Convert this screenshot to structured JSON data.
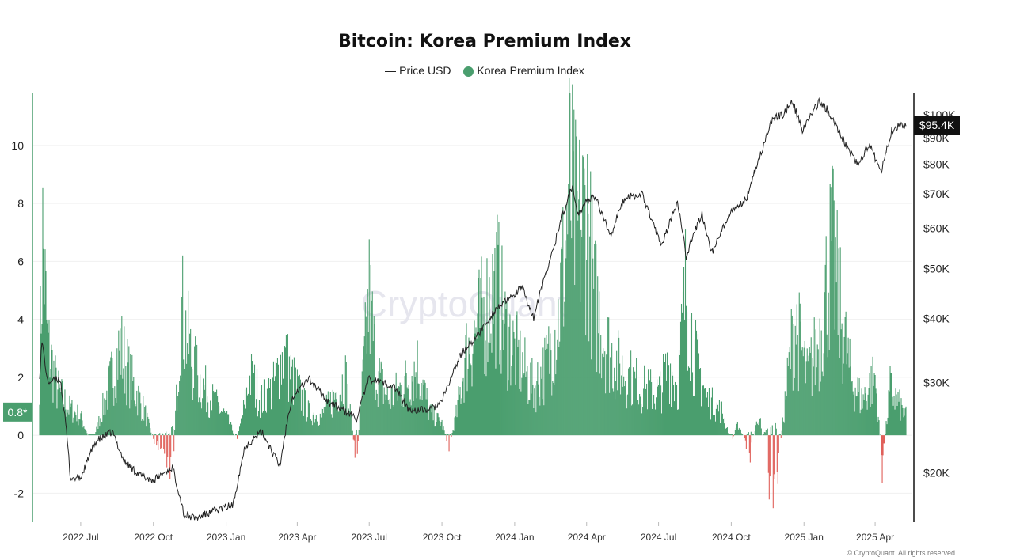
{
  "chart_data": {
    "type": "bar",
    "title": "Bitcoin: Korea Premium Index",
    "watermark": "CryptoQuant",
    "copyright": "© CryptoQuant. All rights reserved",
    "legend": [
      {
        "name": "Price USD",
        "style": "line",
        "color": "#222222"
      },
      {
        "name": "Korea Premium Index",
        "style": "dot",
        "color": "#4a9e6e"
      }
    ],
    "legend_position": "top-center",
    "colors": {
      "positive": "#4a9e6e",
      "negative": "#e0605a",
      "price": "#222222",
      "left_axis": "#4a9e6e"
    },
    "x_axis": {
      "range": [
        "2022-05-10",
        "2025-05-10"
      ],
      "tick_labels": [
        {
          "label": "2022 Jul",
          "date": "2022-07-01"
        },
        {
          "label": "2022 Oct",
          "date": "2022-10-01"
        },
        {
          "label": "2023 Jan",
          "date": "2023-01-01"
        },
        {
          "label": "2023 Apr",
          "date": "2023-04-01"
        },
        {
          "label": "2023 Jul",
          "date": "2023-07-01"
        },
        {
          "label": "2023 Oct",
          "date": "2023-10-01"
        },
        {
          "label": "2024 Jan",
          "date": "2024-01-01"
        },
        {
          "label": "2024 Apr",
          "date": "2024-04-01"
        },
        {
          "label": "2024 Jul",
          "date": "2024-07-01"
        },
        {
          "label": "2024 Oct",
          "date": "2024-10-01"
        },
        {
          "label": "2025 Jan",
          "date": "2025-01-01"
        },
        {
          "label": "2025 Apr",
          "date": "2025-04-01"
        }
      ]
    },
    "y_left": {
      "range": [
        -3,
        11.8
      ],
      "ticks": [
        "-2",
        "0",
        "2",
        "4",
        "6",
        "8",
        "10"
      ],
      "current_value_label": "0.8*",
      "current_value": 0.8
    },
    "y_right": {
      "scale": "log",
      "range": [
        16000,
        110000
      ],
      "ticks": [
        {
          "label": "$20K",
          "value": 20000
        },
        {
          "label": "$30K",
          "value": 30000
        },
        {
          "label": "$40K",
          "value": 40000
        },
        {
          "label": "$50K",
          "value": 50000
        },
        {
          "label": "$60K",
          "value": 60000
        },
        {
          "label": "$70K",
          "value": 70000
        },
        {
          "label": "$80K",
          "value": 80000
        },
        {
          "label": "$90K",
          "value": 90000
        },
        {
          "label": "$100K",
          "value": 100000
        }
      ],
      "current_value_label": "$95.4K",
      "current_value": 95400
    },
    "grid": "horizontal",
    "premium_anchors": [
      [
        "2022-05-10",
        3.0
      ],
      [
        "2022-05-14",
        8.5
      ],
      [
        "2022-05-20",
        4.0
      ],
      [
        "2022-06-01",
        2.0
      ],
      [
        "2022-06-15",
        1.2
      ],
      [
        "2022-07-01",
        0.8
      ],
      [
        "2022-07-15",
        -0.4
      ],
      [
        "2022-08-01",
        1.5
      ],
      [
        "2022-08-20",
        3.8
      ],
      [
        "2022-09-01",
        2.5
      ],
      [
        "2022-09-20",
        1.0
      ],
      [
        "2022-10-01",
        -0.2
      ],
      [
        "2022-10-15",
        -0.6
      ],
      [
        "2022-10-25",
        -1.8
      ],
      [
        "2022-11-05",
        5.5
      ],
      [
        "2022-11-20",
        3.0
      ],
      [
        "2022-12-01",
        2.2
      ],
      [
        "2022-12-15",
        1.5
      ],
      [
        "2023-01-01",
        0.8
      ],
      [
        "2023-01-15",
        -0.2
      ],
      [
        "2023-02-01",
        2.5
      ],
      [
        "2023-02-15",
        1.5
      ],
      [
        "2023-03-01",
        2.0
      ],
      [
        "2023-03-15",
        3.5
      ],
      [
        "2023-03-25",
        2.5
      ],
      [
        "2023-04-15",
        1.0
      ],
      [
        "2023-05-01",
        0.8
      ],
      [
        "2023-05-15",
        1.5
      ],
      [
        "2023-06-01",
        2.5
      ],
      [
        "2023-06-15",
        -1.2
      ],
      [
        "2023-07-01",
        6.0
      ],
      [
        "2023-07-10",
        2.8
      ],
      [
        "2023-07-25",
        1.5
      ],
      [
        "2023-08-10",
        2.0
      ],
      [
        "2023-09-01",
        3.0
      ],
      [
        "2023-09-15",
        1.0
      ],
      [
        "2023-10-01",
        0.5
      ],
      [
        "2023-10-10",
        -0.5
      ],
      [
        "2023-10-20",
        1.0
      ],
      [
        "2023-11-01",
        3.5
      ],
      [
        "2023-11-20",
        5.0
      ],
      [
        "2023-12-10",
        6.5
      ],
      [
        "2023-12-20",
        4.5
      ],
      [
        "2024-01-10",
        3.0
      ],
      [
        "2024-01-25",
        2.0
      ],
      [
        "2024-02-10",
        3.0
      ],
      [
        "2024-02-25",
        5.0
      ],
      [
        "2024-03-05",
        8.0
      ],
      [
        "2024-03-10",
        10.8
      ],
      [
        "2024-03-20",
        8.5
      ],
      [
        "2024-04-01",
        9.8
      ],
      [
        "2024-04-10",
        6.0
      ],
      [
        "2024-04-25",
        4.0
      ],
      [
        "2024-05-10",
        3.0
      ],
      [
        "2024-05-25",
        2.5
      ],
      [
        "2024-06-10",
        2.0
      ],
      [
        "2024-07-01",
        1.8
      ],
      [
        "2024-07-15",
        3.0
      ],
      [
        "2024-07-25",
        2.0
      ],
      [
        "2024-08-05",
        6.5
      ],
      [
        "2024-08-15",
        3.5
      ],
      [
        "2024-09-01",
        1.5
      ],
      [
        "2024-09-20",
        1.0
      ],
      [
        "2024-10-01",
        -0.3
      ],
      [
        "2024-10-10",
        0.5
      ],
      [
        "2024-10-25",
        -0.8
      ],
      [
        "2024-11-05",
        1.0
      ],
      [
        "2024-11-15",
        -1.5
      ],
      [
        "2024-11-25",
        -2.4
      ],
      [
        "2024-12-05",
        0.5
      ],
      [
        "2024-12-20",
        5.0
      ],
      [
        "2025-01-05",
        2.5
      ],
      [
        "2025-01-20",
        4.0
      ],
      [
        "2025-02-05",
        8.0
      ],
      [
        "2025-02-15",
        5.5
      ],
      [
        "2025-03-01",
        2.5
      ],
      [
        "2025-03-15",
        1.5
      ],
      [
        "2025-04-01",
        2.5
      ],
      [
        "2025-04-10",
        -1.2
      ],
      [
        "2025-04-20",
        2.0
      ],
      [
        "2025-05-10",
        0.8
      ]
    ],
    "price_anchors": [
      [
        "2022-05-10",
        31000
      ],
      [
        "2022-05-13",
        36000
      ],
      [
        "2022-05-20",
        30000
      ],
      [
        "2022-06-05",
        30500
      ],
      [
        "2022-06-13",
        24000
      ],
      [
        "2022-06-18",
        19500
      ],
      [
        "2022-07-01",
        19500
      ],
      [
        "2022-07-20",
        23000
      ],
      [
        "2022-08-10",
        24000
      ],
      [
        "2022-08-25",
        21000
      ],
      [
        "2022-09-15",
        19700
      ],
      [
        "2022-10-01",
        19300
      ],
      [
        "2022-10-25",
        20500
      ],
      [
        "2022-11-09",
        16500
      ],
      [
        "2022-11-25",
        16300
      ],
      [
        "2022-12-15",
        16800
      ],
      [
        "2023-01-10",
        17300
      ],
      [
        "2023-01-25",
        22500
      ],
      [
        "2023-02-15",
        24000
      ],
      [
        "2023-03-10",
        20500
      ],
      [
        "2023-03-25",
        28000
      ],
      [
        "2023-04-15",
        30500
      ],
      [
        "2023-05-10",
        27500
      ],
      [
        "2023-06-15",
        25500
      ],
      [
        "2023-07-01",
        30500
      ],
      [
        "2023-08-01",
        29500
      ],
      [
        "2023-08-20",
        26500
      ],
      [
        "2023-09-15",
        26500
      ],
      [
        "2023-10-01",
        27500
      ],
      [
        "2023-10-25",
        34000
      ],
      [
        "2023-11-15",
        37000
      ],
      [
        "2023-12-10",
        42000
      ],
      [
        "2023-12-25",
        43500
      ],
      [
        "2024-01-10",
        46000
      ],
      [
        "2024-01-25",
        40000
      ],
      [
        "2024-02-15",
        52000
      ],
      [
        "2024-03-05",
        66000
      ],
      [
        "2024-03-14",
        72500
      ],
      [
        "2024-03-20",
        64000
      ],
      [
        "2024-04-10",
        70000
      ],
      [
        "2024-05-01",
        58000
      ],
      [
        "2024-05-20",
        69000
      ],
      [
        "2024-06-10",
        70000
      ],
      [
        "2024-07-05",
        55000
      ],
      [
        "2024-07-25",
        68000
      ],
      [
        "2024-08-05",
        53000
      ],
      [
        "2024-08-25",
        64000
      ],
      [
        "2024-09-06",
        53500
      ],
      [
        "2024-09-30",
        64000
      ],
      [
        "2024-10-20",
        68500
      ],
      [
        "2024-11-12",
        88000
      ],
      [
        "2024-11-22",
        98000
      ],
      [
        "2024-12-05",
        100000
      ],
      [
        "2024-12-17",
        106000
      ],
      [
        "2024-12-30",
        93000
      ],
      [
        "2025-01-20",
        106000
      ],
      [
        "2025-01-31",
        102000
      ],
      [
        "2025-02-25",
        86000
      ],
      [
        "2025-03-10",
        80000
      ],
      [
        "2025-03-25",
        87500
      ],
      [
        "2025-04-08",
        77000
      ],
      [
        "2025-04-22",
        93000
      ],
      [
        "2025-05-02",
        95000
      ],
      [
        "2025-05-10",
        95400
      ]
    ]
  }
}
